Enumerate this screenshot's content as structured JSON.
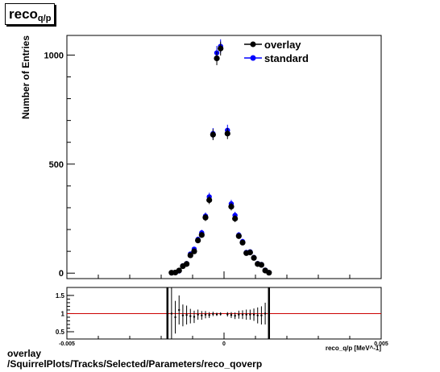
{
  "title": {
    "main": "reco",
    "sub": "q/p"
  },
  "footer": {
    "line1": "overlay",
    "line2": "/SquirrelPlots/Tracks/Selected/Parameters/reco_qoverp"
  },
  "colors": {
    "overlay": "#000000",
    "standard": "#0000ff",
    "ratio_line": "#cc0000"
  },
  "chart_data": [
    {
      "type": "scatter",
      "ylabel": "Number of Entries",
      "xlim": [
        -0.005,
        0.005
      ],
      "ylim": [
        -25,
        1090
      ],
      "yticks": [
        {
          "v": 0,
          "label": "0"
        },
        {
          "v": 500,
          "label": "500"
        },
        {
          "v": 1000,
          "label": "1000"
        }
      ],
      "legend_position": "top-right",
      "series": [
        {
          "name": "overlay",
          "color": "#000000",
          "points": [
            {
              "x": -0.00167,
              "y": 2
            },
            {
              "x": -0.00155,
              "y": 3
            },
            {
              "x": -0.00143,
              "y": 12
            },
            {
              "x": -0.00131,
              "y": 32
            },
            {
              "x": -0.00119,
              "y": 42
            },
            {
              "x": -0.00107,
              "y": 82
            },
            {
              "x": -0.00095,
              "y": 100
            },
            {
              "x": -0.00083,
              "y": 150
            },
            {
              "x": -0.00071,
              "y": 175
            },
            {
              "x": -0.00059,
              "y": 255
            },
            {
              "x": -0.00047,
              "y": 335
            },
            {
              "x": -0.00035,
              "y": 635
            },
            {
              "x": -0.00023,
              "y": 985
            },
            {
              "x": -0.00011,
              "y": 1030
            },
            {
              "x": 0.00011,
              "y": 640
            },
            {
              "x": 0.00023,
              "y": 305
            },
            {
              "x": 0.00035,
              "y": 250
            },
            {
              "x": 0.00047,
              "y": 170
            },
            {
              "x": 0.00059,
              "y": 140
            },
            {
              "x": 0.00071,
              "y": 92
            },
            {
              "x": 0.00083,
              "y": 95
            },
            {
              "x": 0.00095,
              "y": 70
            },
            {
              "x": 0.00107,
              "y": 42
            },
            {
              "x": 0.00119,
              "y": 38
            },
            {
              "x": 0.00131,
              "y": 12
            },
            {
              "x": 0.00143,
              "y": 2
            }
          ]
        },
        {
          "name": "standard",
          "color": "#0000ff",
          "points": [
            {
              "x": -0.00167,
              "y": 1
            },
            {
              "x": -0.00155,
              "y": 4
            },
            {
              "x": -0.00143,
              "y": 10
            },
            {
              "x": -0.00131,
              "y": 34
            },
            {
              "x": -0.00119,
              "y": 44
            },
            {
              "x": -0.00107,
              "y": 88
            },
            {
              "x": -0.00095,
              "y": 110
            },
            {
              "x": -0.00083,
              "y": 155
            },
            {
              "x": -0.00071,
              "y": 185
            },
            {
              "x": -0.00059,
              "y": 262
            },
            {
              "x": -0.00047,
              "y": 350
            },
            {
              "x": -0.00035,
              "y": 640
            },
            {
              "x": -0.00023,
              "y": 1010
            },
            {
              "x": -0.00011,
              "y": 1040
            },
            {
              "x": 0.00011,
              "y": 655
            },
            {
              "x": 0.00023,
              "y": 318
            },
            {
              "x": 0.00035,
              "y": 265
            },
            {
              "x": 0.00047,
              "y": 175
            },
            {
              "x": 0.00059,
              "y": 145
            },
            {
              "x": 0.00071,
              "y": 95
            },
            {
              "x": 0.00083,
              "y": 98
            },
            {
              "x": 0.00095,
              "y": 72
            },
            {
              "x": 0.00107,
              "y": 44
            },
            {
              "x": 0.00119,
              "y": 40
            },
            {
              "x": 0.00131,
              "y": 14
            },
            {
              "x": 0.00143,
              "y": 3
            }
          ]
        }
      ]
    },
    {
      "type": "scatter",
      "xlabel": "reco_q/p [MeV^-1]",
      "xlim": [
        -0.005,
        0.005
      ],
      "ylim": [
        0.3,
        1.72
      ],
      "xticks": [
        {
          "v": -0.005,
          "label": "-0.005"
        },
        {
          "v": 0,
          "label": "0"
        },
        {
          "v": 0.005,
          "label": "0.005"
        }
      ],
      "yticks": [
        {
          "v": 0.5,
          "label": "0.5"
        },
        {
          "v": 1,
          "label": "1"
        },
        {
          "v": 1.5,
          "label": "1.5"
        }
      ],
      "reference_line": 1,
      "series": [
        {
          "name": "ratio",
          "color": "#000000",
          "points": [
            {
              "x": -0.0018,
              "y": 1.0,
              "err": 1.5
            },
            {
              "x": -0.00167,
              "y": 1.0,
              "err": 1.5
            },
            {
              "x": -0.00155,
              "y": 0.9,
              "err": 0.45
            },
            {
              "x": -0.00143,
              "y": 1.1,
              "err": 0.4
            },
            {
              "x": -0.00131,
              "y": 0.95,
              "err": 0.3
            },
            {
              "x": -0.00119,
              "y": 0.96,
              "err": 0.26
            },
            {
              "x": -0.00107,
              "y": 0.93,
              "err": 0.2
            },
            {
              "x": -0.00095,
              "y": 0.91,
              "err": 0.17
            },
            {
              "x": -0.00083,
              "y": 0.97,
              "err": 0.14
            },
            {
              "x": -0.00071,
              "y": 0.95,
              "err": 0.12
            },
            {
              "x": -0.00059,
              "y": 0.97,
              "err": 0.1
            },
            {
              "x": -0.00047,
              "y": 0.96,
              "err": 0.08
            },
            {
              "x": -0.00035,
              "y": 0.99,
              "err": 0.06
            },
            {
              "x": -0.00023,
              "y": 0.98,
              "err": 0.045
            },
            {
              "x": -0.00011,
              "y": 0.99,
              "err": 0.045
            },
            {
              "x": 0.00011,
              "y": 0.98,
              "err": 0.06
            },
            {
              "x": 0.00023,
              "y": 0.96,
              "err": 0.08
            },
            {
              "x": 0.00035,
              "y": 0.94,
              "err": 0.09
            },
            {
              "x": 0.00047,
              "y": 0.97,
              "err": 0.11
            },
            {
              "x": 0.00059,
              "y": 0.97,
              "err": 0.12
            },
            {
              "x": 0.00071,
              "y": 0.97,
              "err": 0.14
            },
            {
              "x": 0.00083,
              "y": 0.97,
              "err": 0.14
            },
            {
              "x": 0.00095,
              "y": 0.97,
              "err": 0.17
            },
            {
              "x": 0.00107,
              "y": 0.95,
              "err": 0.22
            },
            {
              "x": 0.00119,
              "y": 0.95,
              "err": 0.25
            },
            {
              "x": 0.00131,
              "y": 1.0,
              "err": 0.3
            },
            {
              "x": 0.00143,
              "y": 1.0,
              "err": 1.5
            }
          ]
        }
      ]
    }
  ]
}
